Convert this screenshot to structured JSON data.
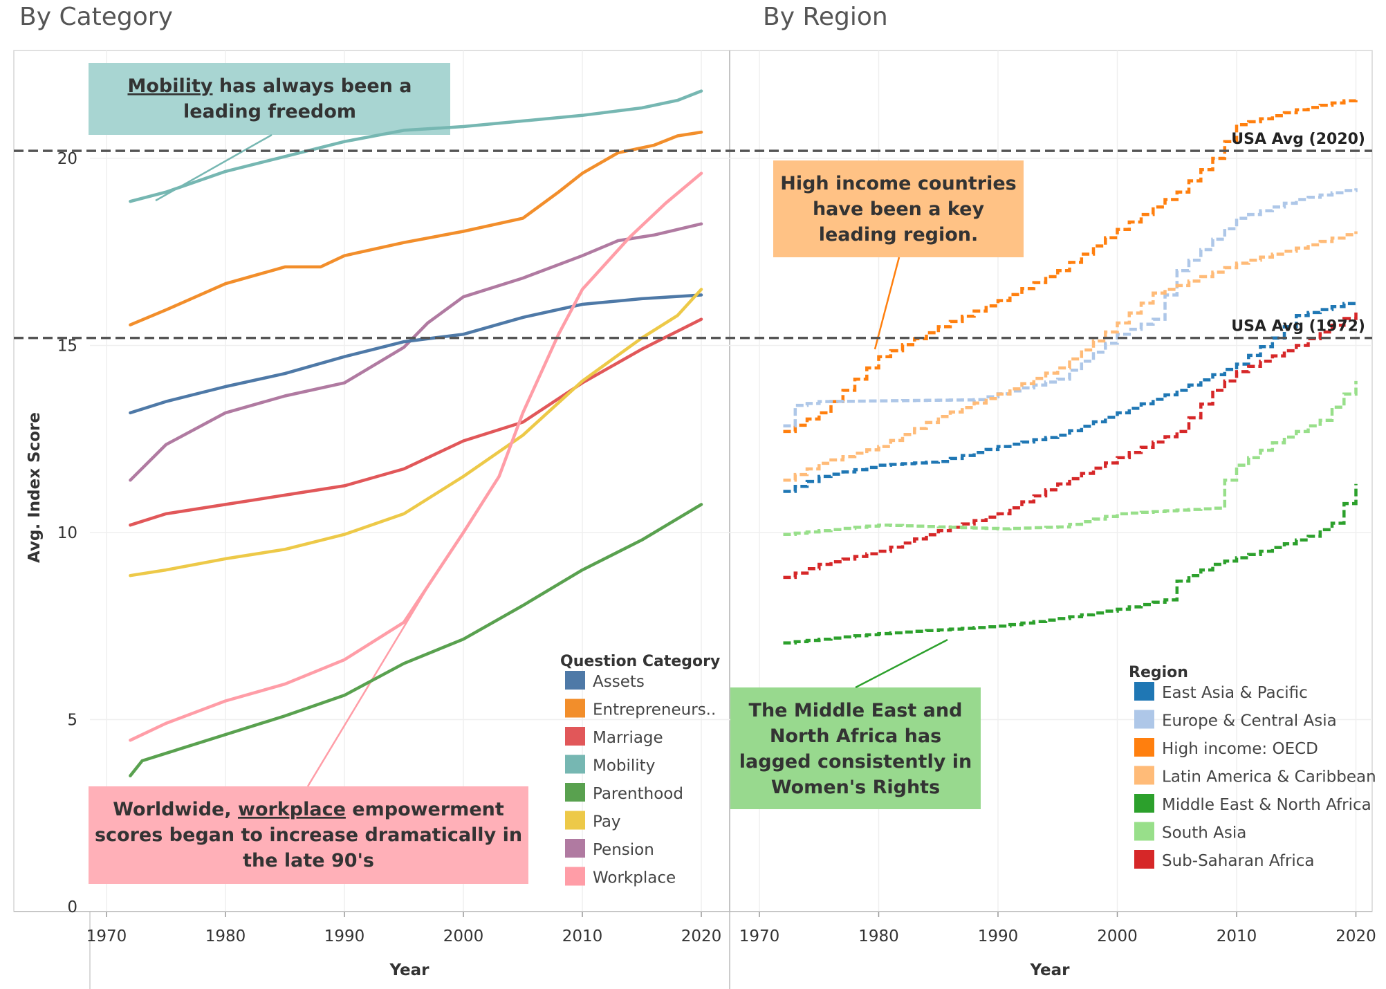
{
  "titles": {
    "left": "By Category",
    "right": "By Region"
  },
  "colors": {
    "Assets": "#4e79a7",
    "Entrepreneurship": "#f28e2b",
    "Marriage": "#e15759",
    "Mobility": "#76b7b2",
    "Parenthood": "#59a14f",
    "Pay": "#edc948",
    "Pension": "#b07aa1",
    "Workplace": "#ff9da7",
    "East Asia & Pacific": "#1f77b4",
    "Europe & Central Asia": "#aec7e8",
    "High income: OECD": "#ff7f0e",
    "Latin America & Caribbean": "#ffbb78",
    "Middle East & North Africa": "#2ca02c",
    "South Asia": "#98df8a",
    "Sub-Saharan Africa": "#d62728"
  },
  "annotations": {
    "mobility": {
      "word": "Mobility",
      "rest": " has always been a",
      "line2": "leading freedom",
      "bg": "#a8d5d2"
    },
    "workplace": {
      "prefix": "Worldwide, ",
      "word": "workplace",
      "rest": " empowerment",
      "line2": "scores began to increase dramatically in",
      "line3": "the late 90's",
      "bg": "#ffb0b8"
    },
    "high_income": {
      "line1": "High income countries",
      "line2": "have been a key",
      "line3": "leading region.",
      "bg": "#ffc285"
    },
    "mena": {
      "line1": "The Middle East and",
      "line2": "North Africa has",
      "line3": "lagged consistently in",
      "line4": "Women's Rights",
      "bg": "#98d98e"
    }
  },
  "ref_lines": [
    {
      "label": "USA Avg (2020)",
      "value": 20.2
    },
    {
      "label": "USA Avg (1972)",
      "value": 15.2
    }
  ],
  "legend_category": {
    "title": "Question Category",
    "items": [
      "Assets",
      "Entrepreneurs..",
      "Marriage",
      "Mobility",
      "Parenthood",
      "Pay",
      "Pension",
      "Workplace"
    ]
  },
  "legend_region": {
    "title": "Region",
    "items": [
      "East Asia & Pacific",
      "Europe & Central Asia",
      "High income: OECD",
      "Latin America & Caribbean",
      "Middle East & North Africa",
      "South Asia",
      "Sub-Saharan Africa"
    ]
  },
  "chart_data": [
    {
      "type": "line",
      "title": "By Category",
      "xlabel": "Year",
      "ylabel": "Avg. Index Score",
      "xlim": [
        1969,
        2022
      ],
      "ylim": [
        0,
        22.5
      ],
      "xticks": [
        1970,
        1980,
        1990,
        2000,
        2010,
        2020
      ],
      "yticks": [
        0,
        5,
        10,
        15,
        20
      ],
      "grid": true,
      "legend": "bottom-right",
      "series": [
        {
          "name": "Mobility",
          "points": [
            [
              1972,
              18.85
            ],
            [
              1975,
              19.1
            ],
            [
              1980,
              19.65
            ],
            [
              1985,
              20.05
            ],
            [
              1990,
              20.45
            ],
            [
              1995,
              20.75
            ],
            [
              2000,
              20.85
            ],
            [
              2005,
              21.0
            ],
            [
              2010,
              21.15
            ],
            [
              2015,
              21.35
            ],
            [
              2018,
              21.55
            ],
            [
              2020,
              21.8
            ]
          ]
        },
        {
          "name": "Entrepreneurship",
          "points": [
            [
              1972,
              15.55
            ],
            [
              1975,
              15.95
            ],
            [
              1980,
              16.65
            ],
            [
              1985,
              17.1
            ],
            [
              1988,
              17.1
            ],
            [
              1990,
              17.4
            ],
            [
              1995,
              17.75
            ],
            [
              2000,
              18.05
            ],
            [
              2005,
              18.4
            ],
            [
              2008,
              19.1
            ],
            [
              2010,
              19.6
            ],
            [
              2013,
              20.15
            ],
            [
              2016,
              20.35
            ],
            [
              2018,
              20.6
            ],
            [
              2020,
              20.7
            ]
          ]
        },
        {
          "name": "Pension",
          "points": [
            [
              1972,
              11.4
            ],
            [
              1975,
              12.35
            ],
            [
              1980,
              13.2
            ],
            [
              1985,
              13.65
            ],
            [
              1990,
              14.0
            ],
            [
              1995,
              14.95
            ],
            [
              1997,
              15.6
            ],
            [
              2000,
              16.3
            ],
            [
              2005,
              16.8
            ],
            [
              2010,
              17.4
            ],
            [
              2013,
              17.8
            ],
            [
              2016,
              17.95
            ],
            [
              2020,
              18.25
            ]
          ]
        },
        {
          "name": "Assets",
          "points": [
            [
              1972,
              13.2
            ],
            [
              1975,
              13.5
            ],
            [
              1980,
              13.9
            ],
            [
              1985,
              14.25
            ],
            [
              1990,
              14.7
            ],
            [
              1995,
              15.1
            ],
            [
              2000,
              15.3
            ],
            [
              2005,
              15.75
            ],
            [
              2010,
              16.1
            ],
            [
              2015,
              16.25
            ],
            [
              2020,
              16.35
            ]
          ]
        },
        {
          "name": "Marriage",
          "points": [
            [
              1972,
              10.2
            ],
            [
              1975,
              10.5
            ],
            [
              1980,
              10.75
            ],
            [
              1985,
              11.0
            ],
            [
              1990,
              11.25
            ],
            [
              1995,
              11.7
            ],
            [
              2000,
              12.45
            ],
            [
              2005,
              12.95
            ],
            [
              2010,
              14.0
            ],
            [
              2015,
              14.9
            ],
            [
              2020,
              15.7
            ]
          ]
        },
        {
          "name": "Pay",
          "points": [
            [
              1972,
              8.85
            ],
            [
              1975,
              9.0
            ],
            [
              1980,
              9.3
            ],
            [
              1985,
              9.55
            ],
            [
              1990,
              9.95
            ],
            [
              1995,
              10.5
            ],
            [
              2000,
              11.5
            ],
            [
              2005,
              12.6
            ],
            [
              2010,
              14.05
            ],
            [
              2015,
              15.2
            ],
            [
              2018,
              15.8
            ],
            [
              2020,
              16.5
            ]
          ]
        },
        {
          "name": "Workplace",
          "points": [
            [
              1972,
              4.45
            ],
            [
              1975,
              4.9
            ],
            [
              1980,
              5.5
            ],
            [
              1985,
              5.95
            ],
            [
              1990,
              6.6
            ],
            [
              1995,
              7.6
            ],
            [
              2000,
              10.0
            ],
            [
              2003,
              11.5
            ],
            [
              2005,
              13.2
            ],
            [
              2008,
              15.3
            ],
            [
              2010,
              16.5
            ],
            [
              2014,
              17.9
            ],
            [
              2017,
              18.8
            ],
            [
              2020,
              19.6
            ]
          ]
        },
        {
          "name": "Parenthood",
          "points": [
            [
              1972,
              3.5
            ],
            [
              1973,
              3.9
            ],
            [
              1975,
              4.1
            ],
            [
              1980,
              4.6
            ],
            [
              1985,
              5.1
            ],
            [
              1990,
              5.65
            ],
            [
              1995,
              6.5
            ],
            [
              2000,
              7.15
            ],
            [
              2005,
              8.05
            ],
            [
              2010,
              9.0
            ],
            [
              2015,
              9.8
            ],
            [
              2020,
              10.75
            ]
          ]
        }
      ]
    },
    {
      "type": "line",
      "title": "By Region",
      "xlabel": "Year",
      "ylim": [
        0,
        22.5
      ],
      "xlim": [
        1969,
        2022
      ],
      "xticks": [
        1970,
        1980,
        1990,
        2000,
        2010,
        2020
      ],
      "grid": true,
      "legend": "bottom-right",
      "series": [
        {
          "name": "High income: OECD",
          "points": [
            [
              1972,
              12.7
            ],
            [
              1975,
              13.2
            ],
            [
              1978,
              14.1
            ],
            [
              1980,
              14.7
            ],
            [
              1985,
              15.5
            ],
            [
              1990,
              16.2
            ],
            [
              1995,
              17.0
            ],
            [
              2000,
              18.1
            ],
            [
              2005,
              19.1
            ],
            [
              2008,
              20.0
            ],
            [
              2010,
              20.9
            ],
            [
              2015,
              21.3
            ],
            [
              2020,
              21.6
            ]
          ]
        },
        {
          "name": "Europe & Central Asia",
          "points": [
            [
              1972,
              12.85
            ],
            [
              1973,
              13.4
            ],
            [
              1975,
              13.5
            ],
            [
              1988,
              13.55
            ],
            [
              1995,
              14.1
            ],
            [
              2000,
              15.3
            ],
            [
              2003,
              15.7
            ],
            [
              2005,
              17.0
            ],
            [
              2010,
              18.4
            ],
            [
              2015,
              18.9
            ],
            [
              2020,
              19.2
            ]
          ]
        },
        {
          "name": "Latin America & Caribbean",
          "points": [
            [
              1972,
              11.4
            ],
            [
              1975,
              11.85
            ],
            [
              1980,
              12.3
            ],
            [
              1985,
              13.1
            ],
            [
              1990,
              13.7
            ],
            [
              1995,
              14.4
            ],
            [
              2000,
              15.6
            ],
            [
              2003,
              16.4
            ],
            [
              2005,
              16.6
            ],
            [
              2010,
              17.2
            ],
            [
              2015,
              17.6
            ],
            [
              2020,
              18.05
            ]
          ]
        },
        {
          "name": "East Asia & Pacific",
          "points": [
            [
              1972,
              11.1
            ],
            [
              1975,
              11.5
            ],
            [
              1980,
              11.8
            ],
            [
              1985,
              11.9
            ],
            [
              1990,
              12.3
            ],
            [
              1995,
              12.6
            ],
            [
              2000,
              13.2
            ],
            [
              2005,
              13.8
            ],
            [
              2010,
              14.5
            ],
            [
              2013,
              15.2
            ],
            [
              2015,
              15.8
            ],
            [
              2020,
              16.2
            ]
          ]
        },
        {
          "name": "Sub-Saharan Africa",
          "points": [
            [
              1972,
              8.8
            ],
            [
              1975,
              9.15
            ],
            [
              1980,
              9.5
            ],
            [
              1985,
              10.05
            ],
            [
              1990,
              10.5
            ],
            [
              1995,
              11.3
            ],
            [
              2000,
              12.0
            ],
            [
              2005,
              12.7
            ],
            [
              2008,
              13.8
            ],
            [
              2010,
              14.3
            ],
            [
              2015,
              15.0
            ],
            [
              2020,
              15.9
            ]
          ]
        },
        {
          "name": "South Asia",
          "points": [
            [
              1972,
              9.95
            ],
            [
              1975,
              10.05
            ],
            [
              1980,
              10.2
            ],
            [
              1985,
              10.15
            ],
            [
              1990,
              10.1
            ],
            [
              1995,
              10.15
            ],
            [
              2000,
              10.5
            ],
            [
              2005,
              10.6
            ],
            [
              2008,
              10.65
            ],
            [
              2009,
              11.4
            ],
            [
              2010,
              11.8
            ],
            [
              2013,
              12.4
            ],
            [
              2017,
              13.0
            ],
            [
              2020,
              14.05
            ]
          ]
        },
        {
          "name": "Middle East & North Africa",
          "points": [
            [
              1972,
              7.05
            ],
            [
              1975,
              7.15
            ],
            [
              1980,
              7.3
            ],
            [
              1985,
              7.4
            ],
            [
              1990,
              7.5
            ],
            [
              1995,
              7.7
            ],
            [
              2000,
              7.95
            ],
            [
              2004,
              8.2
            ],
            [
              2005,
              8.7
            ],
            [
              2008,
              9.15
            ],
            [
              2012,
              9.5
            ],
            [
              2016,
              9.9
            ],
            [
              2018,
              10.25
            ],
            [
              2020,
              11.3
            ]
          ]
        }
      ]
    }
  ]
}
